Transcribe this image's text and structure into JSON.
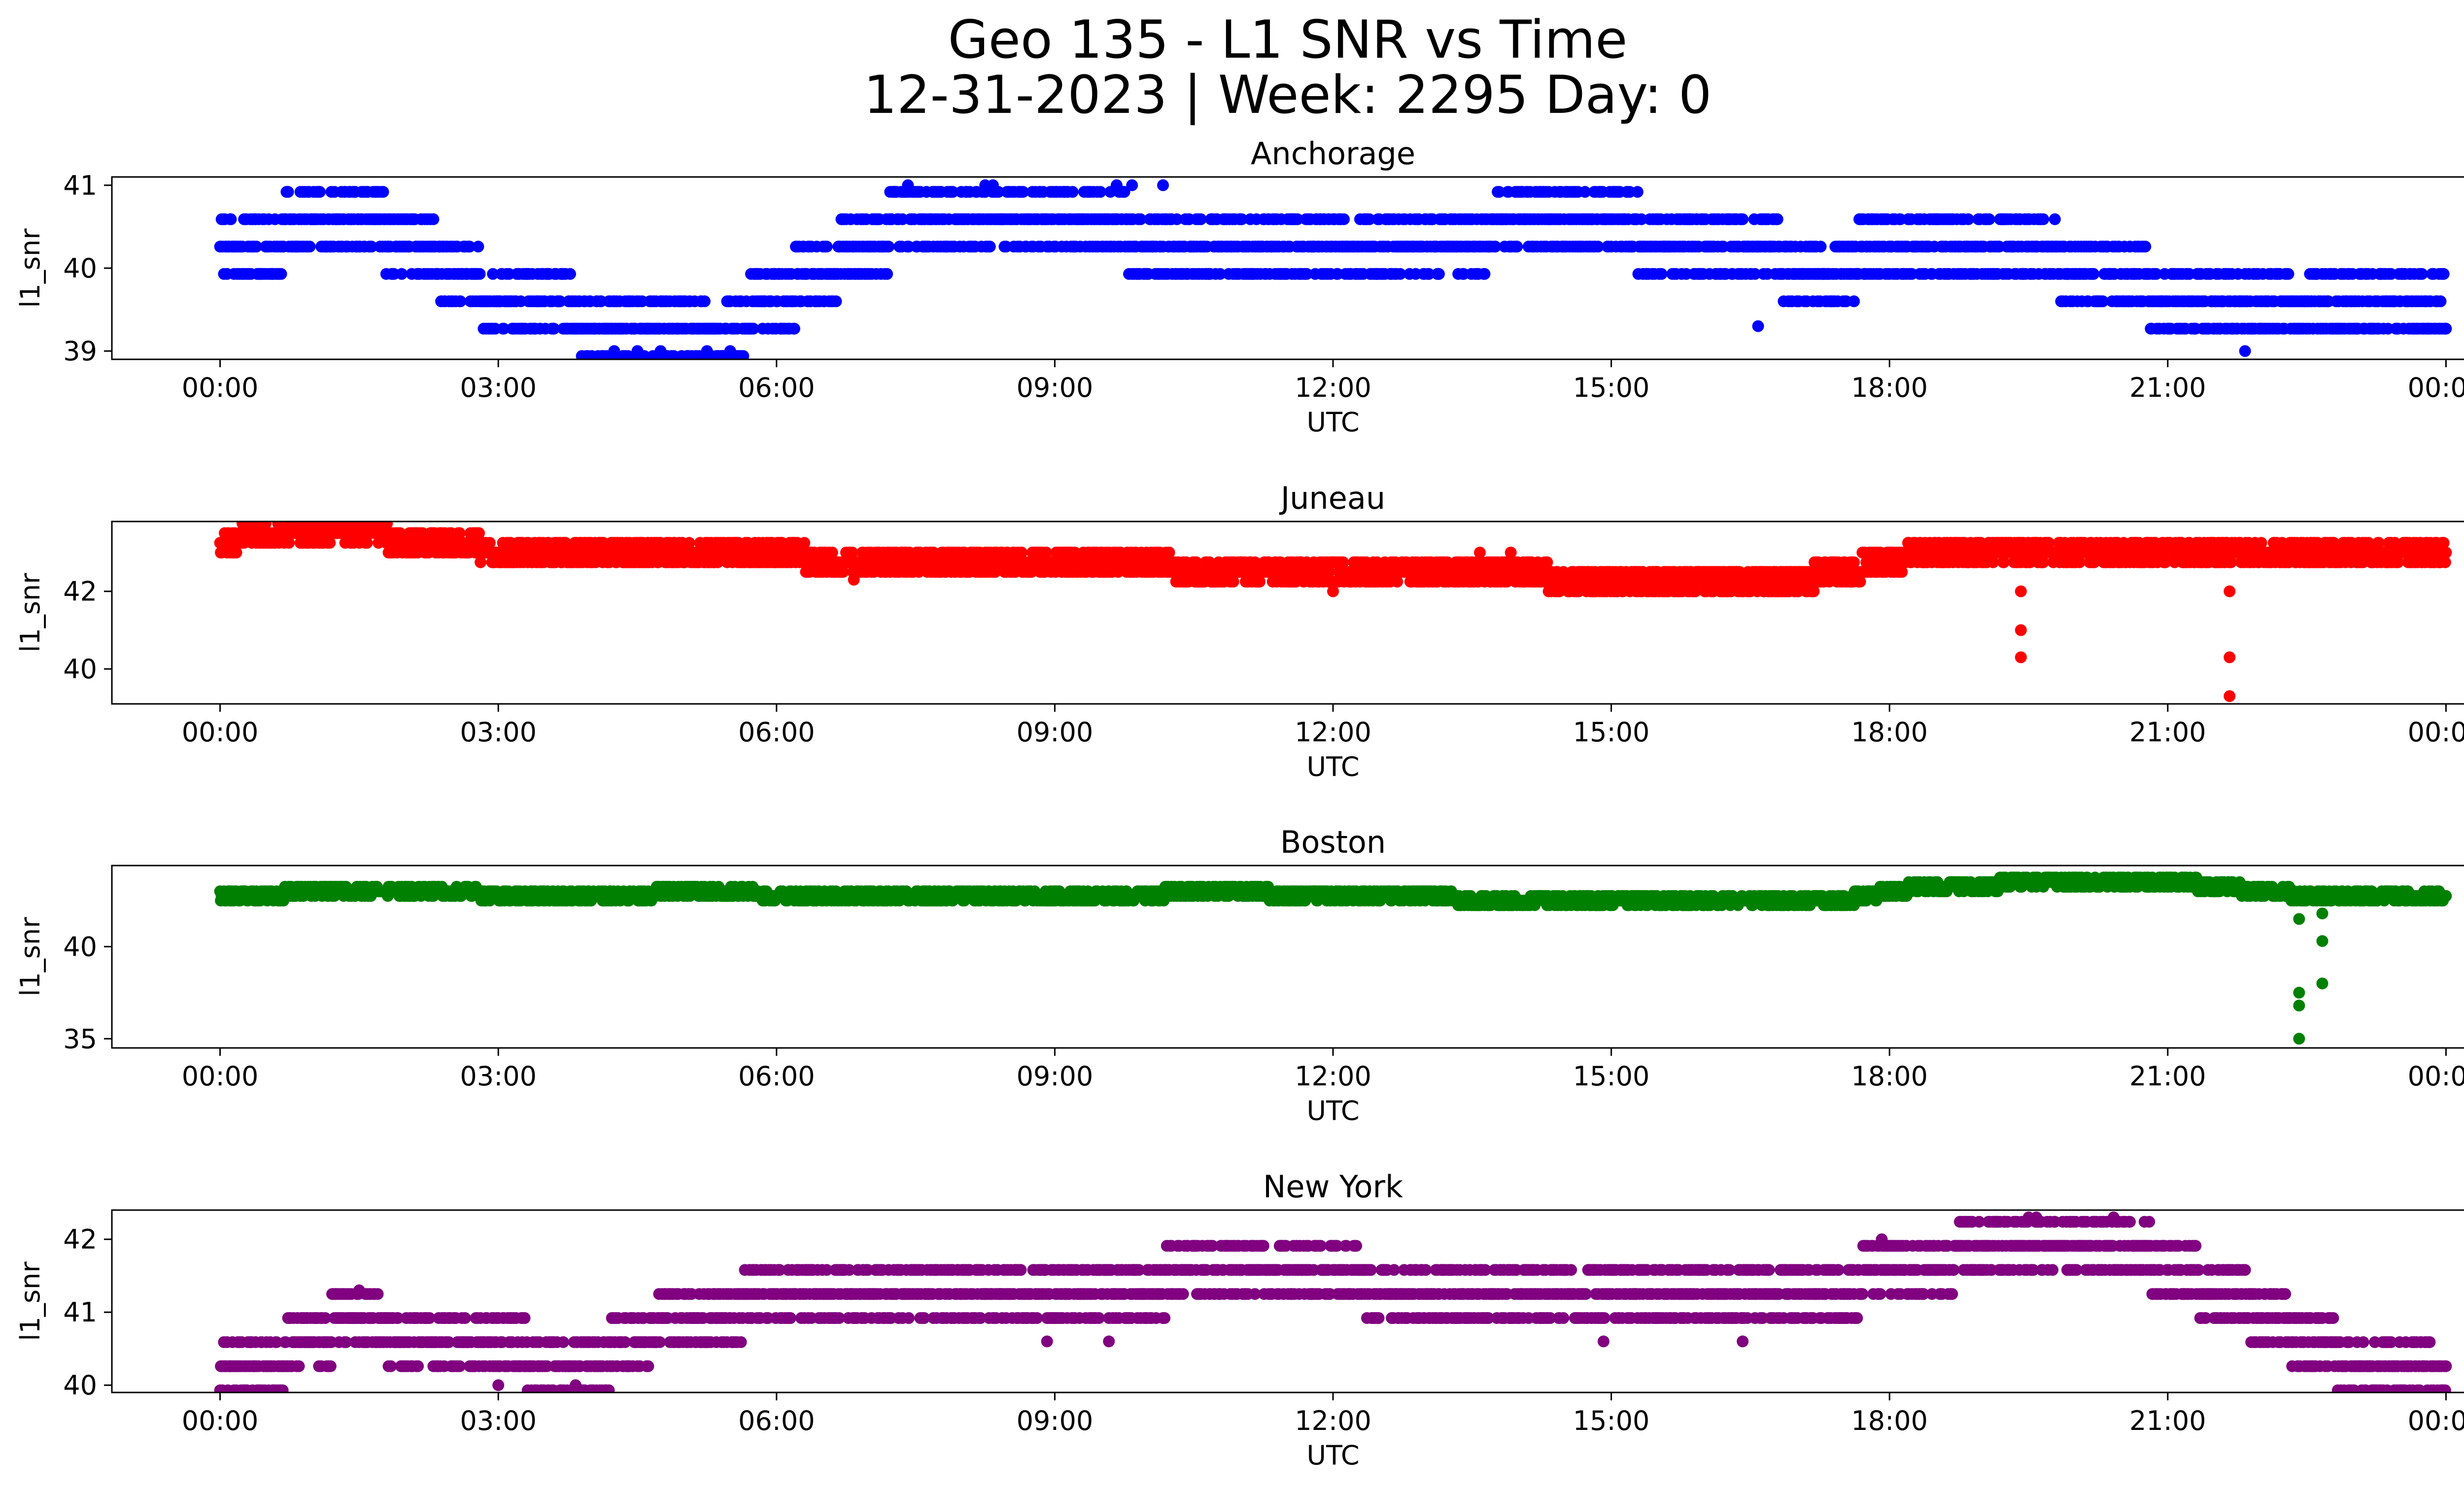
{
  "figure": {
    "title_line1": "Geo 135 - L1 SNR vs Time",
    "title_line2": "12-31-2023 | Week: 2295 Day: 0"
  },
  "chart_data": [
    {
      "type": "scatter",
      "title": "Anchorage",
      "xlabel": "UTC",
      "ylabel": "l1_snr",
      "color": "#0000ff",
      "xlim": [
        "-01:10",
        "25:10"
      ],
      "ylim": [
        38.9,
        41.1
      ],
      "xticks": [
        "00:00",
        "03:00",
        "06:00",
        "09:00",
        "12:00",
        "15:00",
        "18:00",
        "21:00",
        "00:00"
      ],
      "yticks": [
        39,
        40,
        41
      ],
      "series": [
        {
          "x": [
            "00:00",
            "00:30",
            "01:00",
            "01:30",
            "02:00",
            "02:30",
            "03:00",
            "03:30",
            "04:00",
            "04:30",
            "05:00",
            "05:30",
            "06:00",
            "06:30",
            "07:00",
            "07:30",
            "08:00",
            "08:30",
            "09:00",
            "09:30",
            "10:00",
            "10:30",
            "11:00",
            "11:30",
            "12:00",
            "12:30",
            "13:00",
            "13:30",
            "14:00",
            "14:30",
            "15:00",
            "15:30",
            "16:00",
            "16:30",
            "17:00",
            "17:30",
            "18:00",
            "18:30",
            "19:00",
            "19:30",
            "20:00",
            "20:30",
            "21:00",
            "21:30",
            "22:00",
            "22:30",
            "23:00",
            "23:30",
            "24:00"
          ],
          "y": [
            40.3,
            40.3,
            40.6,
            40.6,
            40.3,
            40.0,
            39.6,
            39.6,
            39.3,
            39.3,
            39.3,
            39.3,
            39.6,
            40.0,
            40.3,
            40.6,
            40.6,
            40.6,
            40.6,
            40.6,
            40.3,
            40.3,
            40.3,
            40.3,
            40.3,
            40.3,
            40.3,
            40.3,
            40.6,
            40.6,
            40.6,
            40.3,
            40.3,
            40.3,
            40.0,
            40.0,
            40.3,
            40.3,
            40.3,
            40.3,
            40.0,
            40.0,
            39.6,
            39.6,
            39.6,
            39.6,
            39.6,
            39.6,
            39.6
          ]
        }
      ],
      "outliers": [
        {
          "x": "04:15",
          "y": 39.0
        },
        {
          "x": "04:30",
          "y": 39.0
        },
        {
          "x": "04:45",
          "y": 39.0
        },
        {
          "x": "05:15",
          "y": 39.0
        },
        {
          "x": "05:30",
          "y": 39.0
        },
        {
          "x": "07:25",
          "y": 41.0
        },
        {
          "x": "08:15",
          "y": 41.0
        },
        {
          "x": "08:20",
          "y": 41.0
        },
        {
          "x": "09:40",
          "y": 41.0
        },
        {
          "x": "09:50",
          "y": 41.0
        },
        {
          "x": "10:10",
          "y": 41.0
        },
        {
          "x": "16:35",
          "y": 39.3
        },
        {
          "x": "21:50",
          "y": 39.0
        }
      ]
    },
    {
      "type": "scatter",
      "title": "Juneau",
      "xlabel": "UTC",
      "ylabel": "l1_snr",
      "color": "#ff0000",
      "xlim": [
        "-01:10",
        "25:10"
      ],
      "ylim": [
        39.1,
        43.8
      ],
      "xticks": [
        "00:00",
        "03:00",
        "06:00",
        "09:00",
        "12:00",
        "15:00",
        "18:00",
        "21:00",
        "00:00"
      ],
      "yticks": [
        40,
        42
      ],
      "series": [
        {
          "x": [
            "00:00",
            "00:30",
            "01:00",
            "01:30",
            "02:00",
            "02:30",
            "03:00",
            "03:30",
            "04:00",
            "04:30",
            "05:00",
            "05:30",
            "06:00",
            "06:30",
            "07:00",
            "07:30",
            "08:00",
            "08:30",
            "09:00",
            "09:30",
            "10:00",
            "10:30",
            "11:00",
            "11:30",
            "12:00",
            "12:30",
            "13:00",
            "13:30",
            "14:00",
            "14:30",
            "15:00",
            "15:30",
            "16:00",
            "16:30",
            "17:00",
            "17:30",
            "18:00",
            "18:30",
            "19:00",
            "19:30",
            "20:00",
            "20:30",
            "21:00",
            "21:30",
            "22:00",
            "22:30",
            "23:00",
            "23:30",
            "24:00"
          ],
          "y": [
            43.3,
            43.5,
            43.5,
            43.5,
            43.3,
            43.3,
            43.0,
            43.0,
            43.0,
            43.0,
            43.0,
            43.0,
            43.0,
            42.8,
            42.8,
            42.8,
            42.8,
            42.8,
            42.8,
            42.8,
            42.8,
            42.5,
            42.5,
            42.5,
            42.5,
            42.5,
            42.5,
            42.5,
            42.5,
            42.3,
            42.3,
            42.3,
            42.3,
            42.3,
            42.3,
            42.5,
            42.8,
            43.0,
            43.0,
            43.0,
            43.0,
            43.0,
            43.0,
            43.0,
            43.0,
            43.0,
            43.0,
            43.0,
            43.0
          ]
        }
      ],
      "outliers": [
        {
          "x": "19:25",
          "y": 42.0
        },
        {
          "x": "19:25",
          "y": 41.0
        },
        {
          "x": "19:25",
          "y": 40.3
        },
        {
          "x": "21:40",
          "y": 42.0
        },
        {
          "x": "21:40",
          "y": 40.3
        },
        {
          "x": "21:40",
          "y": 39.3
        },
        {
          "x": "13:35",
          "y": 43.0
        },
        {
          "x": "13:55",
          "y": 43.0
        },
        {
          "x": "12:00",
          "y": 42.0
        },
        {
          "x": "06:50",
          "y": 42.3
        }
      ]
    },
    {
      "type": "scatter",
      "title": "Boston",
      "xlabel": "UTC",
      "ylabel": "l1_snr",
      "color": "#008000",
      "xlim": [
        "-01:10",
        "25:10"
      ],
      "ylim": [
        34.5,
        44.4
      ],
      "xticks": [
        "00:00",
        "03:00",
        "06:00",
        "09:00",
        "12:00",
        "15:00",
        "18:00",
        "21:00",
        "00:00"
      ],
      "yticks": [
        35,
        40
      ],
      "series": [
        {
          "x": [
            "00:00",
            "00:30",
            "01:00",
            "01:30",
            "02:00",
            "02:30",
            "03:00",
            "03:30",
            "04:00",
            "04:30",
            "05:00",
            "05:30",
            "06:00",
            "06:30",
            "07:00",
            "07:30",
            "08:00",
            "08:30",
            "09:00",
            "09:30",
            "10:00",
            "10:30",
            "11:00",
            "11:30",
            "12:00",
            "12:30",
            "13:00",
            "13:30",
            "14:00",
            "14:30",
            "15:00",
            "15:30",
            "16:00",
            "16:30",
            "17:00",
            "17:30",
            "18:00",
            "18:30",
            "19:00",
            "19:30",
            "20:00",
            "20:30",
            "21:00",
            "21:30",
            "22:00",
            "22:30",
            "23:00",
            "23:30",
            "24:00"
          ],
          "y": [
            42.8,
            42.8,
            43.0,
            43.0,
            43.0,
            43.0,
            42.8,
            42.8,
            42.8,
            42.8,
            43.0,
            43.0,
            42.8,
            42.8,
            42.8,
            42.8,
            42.8,
            42.8,
            42.8,
            42.8,
            42.8,
            43.0,
            43.0,
            42.8,
            42.8,
            42.8,
            42.8,
            42.5,
            42.5,
            42.5,
            42.5,
            42.5,
            42.5,
            42.5,
            42.5,
            42.5,
            43.0,
            43.3,
            43.3,
            43.5,
            43.5,
            43.5,
            43.5,
            43.3,
            43.0,
            42.8,
            42.8,
            42.8,
            42.8
          ]
        }
      ],
      "outliers": [
        {
          "x": "22:25",
          "y": 41.5
        },
        {
          "x": "22:25",
          "y": 37.5
        },
        {
          "x": "22:25",
          "y": 36.8
        },
        {
          "x": "22:25",
          "y": 35.0
        },
        {
          "x": "22:40",
          "y": 41.8
        },
        {
          "x": "22:40",
          "y": 40.3
        },
        {
          "x": "22:40",
          "y": 38.0
        }
      ]
    },
    {
      "type": "scatter",
      "title": "New York",
      "xlabel": "UTC",
      "ylabel": "l1_snr",
      "color": "#800080",
      "xlim": [
        "-01:10",
        "25:10"
      ],
      "ylim": [
        39.9,
        42.4
      ],
      "xticks": [
        "00:00",
        "03:00",
        "06:00",
        "09:00",
        "12:00",
        "15:00",
        "18:00",
        "21:00",
        "00:00"
      ],
      "yticks": [
        40,
        41,
        42
      ],
      "series": [
        {
          "x": [
            "00:00",
            "00:30",
            "01:00",
            "01:30",
            "02:00",
            "02:30",
            "03:00",
            "03:30",
            "04:00",
            "04:30",
            "05:00",
            "05:30",
            "06:00",
            "06:30",
            "07:00",
            "07:30",
            "08:00",
            "08:30",
            "09:00",
            "09:30",
            "10:00",
            "10:30",
            "11:00",
            "11:30",
            "12:00",
            "12:30",
            "13:00",
            "13:30",
            "14:00",
            "14:30",
            "15:00",
            "15:30",
            "16:00",
            "16:30",
            "17:00",
            "17:30",
            "18:00",
            "18:30",
            "19:00",
            "19:30",
            "20:00",
            "20:30",
            "21:00",
            "21:30",
            "22:00",
            "22:30",
            "23:00",
            "23:30",
            "24:00"
          ],
          "y": [
            40.3,
            40.3,
            40.6,
            41.0,
            40.6,
            40.6,
            40.6,
            40.3,
            40.3,
            40.6,
            41.0,
            41.0,
            41.3,
            41.3,
            41.3,
            41.3,
            41.3,
            41.3,
            41.3,
            41.3,
            41.3,
            41.6,
            41.6,
            41.6,
            41.6,
            41.3,
            41.3,
            41.3,
            41.3,
            41.3,
            41.3,
            41.3,
            41.3,
            41.3,
            41.3,
            41.3,
            41.6,
            41.6,
            42.0,
            42.0,
            42.0,
            42.0,
            41.6,
            41.3,
            41.0,
            40.6,
            40.3,
            40.3,
            40.0
          ]
        }
      ],
      "outliers": [
        {
          "x": "19:30",
          "y": 42.3
        },
        {
          "x": "19:35",
          "y": 42.3
        },
        {
          "x": "20:25",
          "y": 42.3
        },
        {
          "x": "17:55",
          "y": 42.0
        },
        {
          "x": "01:30",
          "y": 41.3
        },
        {
          "x": "03:00",
          "y": 40.0
        },
        {
          "x": "03:50",
          "y": 40.0
        },
        {
          "x": "08:55",
          "y": 40.6
        },
        {
          "x": "09:35",
          "y": 40.6
        },
        {
          "x": "14:55",
          "y": 40.6
        },
        {
          "x": "16:25",
          "y": 40.6
        }
      ]
    }
  ]
}
